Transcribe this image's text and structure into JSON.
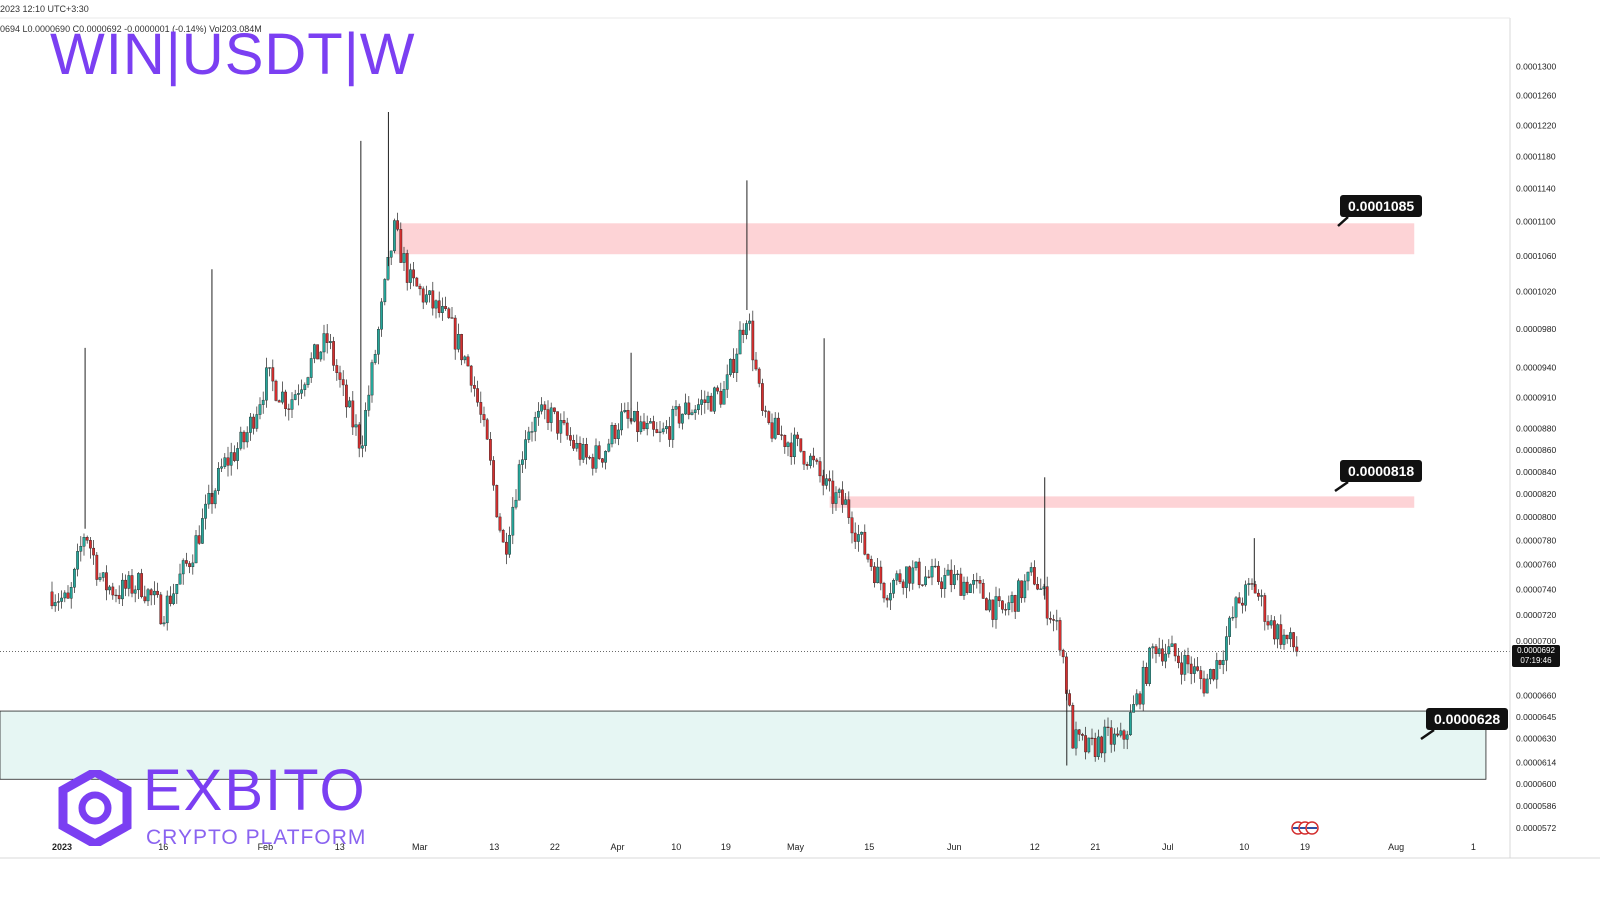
{
  "header": {
    "time_line": "2023 12:10 UTC+3:30",
    "ohlc_line": "0694  L0.0000690  C0.0000692  -0.0000001 (-0.14%)  Vol203.084M"
  },
  "symbol_title": "WIN|USDT|W",
  "logo": {
    "word": "EXBITO",
    "sub": "CRYPTO PLATFORM"
  },
  "colors": {
    "accent": "#7b3ff2",
    "resistance_zone": "#fdd3d6",
    "support_zone": "#e6f6f3",
    "candle_up": "#26a69a",
    "candle_down": "#d32f2f"
  },
  "current_price": {
    "value": "0.0000692",
    "countdown": "07:19:46",
    "price": 6.92e-05
  },
  "chart_data": {
    "type": "candlestick",
    "title": "WIN|USDT|W",
    "y_axis": {
      "scale": "log",
      "ylim": [
        5.66e-05,
        0.000137
      ],
      "ticks": [
        "0.0001300",
        "0.0001260",
        "0.0001220",
        "0.0001180",
        "0.0001140",
        "0.0001100",
        "0.0001060",
        "0.0001020",
        "0.0000980",
        "0.0000940",
        "0.0000910",
        "0.0000880",
        "0.0000860",
        "0.0000840",
        "0.0000820",
        "0.0000800",
        "0.0000780",
        "0.0000760",
        "0.0000740",
        "0.0000720",
        "0.0000700",
        "0.0000660",
        "0.0000645",
        "0.0000630",
        "0.0000614",
        "0.0000600",
        "0.0000586",
        "0.0000572"
      ]
    },
    "x_axis": {
      "ticks": [
        "2023",
        "16",
        "Feb",
        "13",
        "Mar",
        "13",
        "22",
        "Apr",
        "10",
        "19",
        "May",
        "15",
        "Jun",
        "12",
        "21",
        "Jul",
        "10",
        "19",
        "Aug",
        "1"
      ]
    },
    "price_path": [
      {
        "date": "2023-01-01",
        "price": 7.38e-05
      },
      {
        "date": "2023-01-04",
        "price": 7.28e-05
      },
      {
        "date": "2023-01-07",
        "price": 7.9e-05
      },
      {
        "date": "2023-01-10",
        "price": 7.45e-05
      },
      {
        "date": "2023-01-13",
        "price": 7.38e-05
      },
      {
        "date": "2023-01-17",
        "price": 7.45e-05
      },
      {
        "date": "2023-01-21",
        "price": 7.22e-05
      },
      {
        "date": "2023-01-26",
        "price": 7.65e-05
      },
      {
        "date": "2023-02-01",
        "price": 8.45e-05
      },
      {
        "date": "2023-02-05",
        "price": 8.7e-05
      },
      {
        "date": "2023-02-09",
        "price": 9.3e-05
      },
      {
        "date": "2023-02-13",
        "price": 9.05e-05
      },
      {
        "date": "2023-02-17",
        "price": 9.45e-05
      },
      {
        "date": "2023-02-20",
        "price": 9.68e-05
      },
      {
        "date": "2023-02-23",
        "price": 9.08e-05
      },
      {
        "date": "2023-02-26",
        "price": 8.65e-05
      },
      {
        "date": "2023-03-01",
        "price": 9.7e-05
      },
      {
        "date": "2023-03-04",
        "price": 0.000109
      },
      {
        "date": "2023-03-07",
        "price": 0.000103
      },
      {
        "date": "2023-03-10",
        "price": 0.0001012
      },
      {
        "date": "2023-03-14",
        "price": 9.85e-05
      },
      {
        "date": "2023-03-18",
        "price": 9.35e-05
      },
      {
        "date": "2023-03-21",
        "price": 8.6e-05
      },
      {
        "date": "2023-03-24",
        "price": 7.7e-05
      },
      {
        "date": "2023-03-28",
        "price": 8.8e-05
      },
      {
        "date": "2023-04-01",
        "price": 8.95e-05
      },
      {
        "date": "2023-04-05",
        "price": 8.68e-05
      },
      {
        "date": "2023-04-08",
        "price": 8.5e-05
      },
      {
        "date": "2023-04-11",
        "price": 8.58e-05
      },
      {
        "date": "2023-04-14",
        "price": 8.9e-05
      },
      {
        "date": "2023-04-18",
        "price": 8.8e-05
      },
      {
        "date": "2023-04-21",
        "price": 8.7e-05
      },
      {
        "date": "2023-04-25",
        "price": 8.95e-05
      },
      {
        "date": "2023-04-29",
        "price": 9.05e-05
      },
      {
        "date": "2023-05-03",
        "price": 9.15e-05
      },
      {
        "date": "2023-05-07",
        "price": 0.0001
      },
      {
        "date": "2023-05-10",
        "price": 8.85e-05
      },
      {
        "date": "2023-05-14",
        "price": 8.7e-05
      },
      {
        "date": "2023-05-18",
        "price": 8.55e-05
      },
      {
        "date": "2023-05-22",
        "price": 8.2e-05
      },
      {
        "date": "2023-05-25",
        "price": 8.1e-05
      },
      {
        "date": "2023-05-28",
        "price": 7.75e-05
      },
      {
        "date": "2023-06-01",
        "price": 7.4e-05
      },
      {
        "date": "2023-06-05",
        "price": 7.55e-05
      },
      {
        "date": "2023-06-08",
        "price": 7.5e-05
      },
      {
        "date": "2023-06-12",
        "price": 7.48e-05
      },
      {
        "date": "2023-06-16",
        "price": 7.45e-05
      },
      {
        "date": "2023-06-19",
        "price": 7.35e-05
      },
      {
        "date": "2023-06-22",
        "price": 7.2e-05
      },
      {
        "date": "2023-06-25",
        "price": 7.35e-05
      },
      {
        "date": "2023-06-28",
        "price": 7.52e-05
      },
      {
        "date": "2023-07-01",
        "price": 7.22e-05
      },
      {
        "date": "2023-07-03",
        "price": 7e-05
      },
      {
        "date": "2023-07-05",
        "price": 6.3e-05
      },
      {
        "date": "2023-07-08",
        "price": 6.22e-05
      },
      {
        "date": "2023-07-11",
        "price": 6.3e-05
      },
      {
        "date": "2023-07-14",
        "price": 6.28e-05
      },
      {
        "date": "2023-07-17",
        "price": 6.6e-05
      },
      {
        "date": "2023-07-20",
        "price": 6.98e-05
      },
      {
        "date": "2023-07-23",
        "price": 6.9e-05
      },
      {
        "date": "2023-07-26",
        "price": 6.82e-05
      },
      {
        "date": "2023-07-29",
        "price": 6.68e-05
      },
      {
        "date": "2023-08-01",
        "price": 6.9e-05
      },
      {
        "date": "2023-08-04",
        "price": 7.3e-05
      },
      {
        "date": "2023-08-07",
        "price": 7.42e-05
      },
      {
        "date": "2023-08-10",
        "price": 7.12e-05
      },
      {
        "date": "2023-08-13",
        "price": 7e-05
      },
      {
        "date": "2023-08-15",
        "price": 6.92e-05
      }
    ],
    "spikes": [
      {
        "date": "2023-01-07",
        "high": 9.6e-05
      },
      {
        "date": "2023-01-30",
        "high": 0.0001045
      },
      {
        "date": "2023-02-26",
        "high": 0.00012
      },
      {
        "date": "2023-03-03",
        "high": 0.0001238
      },
      {
        "date": "2023-04-16",
        "high": 9.55e-05
      },
      {
        "date": "2023-05-07",
        "high": 0.000115
      },
      {
        "date": "2023-05-21",
        "high": 9.7e-05
      },
      {
        "date": "2023-06-30",
        "high": 8.35e-05
      },
      {
        "date": "2023-07-04",
        "low": 6.12e-05
      },
      {
        "date": "2023-08-07",
        "high": 7.82e-05
      }
    ],
    "zones": [
      {
        "name": "resistance-upper",
        "from": "2023-03-04",
        "to": "2023-09-05",
        "low": 0.0001062,
        "high": 0.0001098,
        "label": "0.0001085"
      },
      {
        "name": "resistance-middle",
        "from": "2023-05-22",
        "to": "2023-09-05",
        "low": 8.08e-05,
        "high": 8.18e-05,
        "label": "0.0000818"
      },
      {
        "name": "support",
        "from": "2023-01-01",
        "to": "2023-09-18",
        "low": 6.03e-05,
        "high": 6.49e-05,
        "label": "0.0000628"
      }
    ]
  }
}
